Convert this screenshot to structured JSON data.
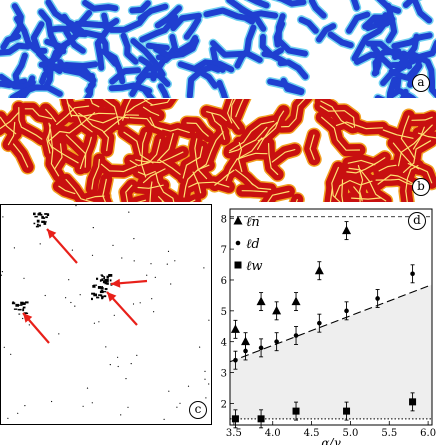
{
  "panels": {
    "a": {
      "label": "a"
    },
    "b": {
      "label": "b"
    },
    "c": {
      "label": "c"
    },
    "d": {
      "label": "d"
    }
  },
  "colors": {
    "a_stripe": "#1f3fd0",
    "a_halo": "#6fd0f0",
    "b_stripe": "#c81010",
    "b_halo": "#f2a020",
    "b_core": "#ffe070",
    "arrow": "#e8201a",
    "band_fill": "#eeeeee"
  },
  "chart_data": {
    "type": "scatter",
    "xlabel": "α/γ",
    "ylabel": "",
    "xlim": [
      3.45,
      6.05
    ],
    "ylim": [
      1.3,
      8.3
    ],
    "x_ticks": [
      "3.5",
      "4.0",
      "4.5",
      "5.0",
      "5.5",
      "6.0"
    ],
    "y_ticks": [
      "2",
      "3",
      "4",
      "5",
      "6",
      "7",
      "8"
    ],
    "series": [
      {
        "name": "ℓn",
        "marker": "triangle",
        "points": [
          [
            3.52,
            4.4
          ],
          [
            3.65,
            4.0
          ],
          [
            3.85,
            5.3
          ],
          [
            4.05,
            5.0
          ],
          [
            4.3,
            5.3
          ],
          [
            4.6,
            6.3
          ],
          [
            4.95,
            7.6
          ]
        ]
      },
      {
        "name": "ℓd",
        "marker": "circle",
        "points": [
          [
            3.52,
            3.4
          ],
          [
            3.65,
            3.7
          ],
          [
            3.85,
            3.8
          ],
          [
            4.05,
            4.0
          ],
          [
            4.3,
            4.2
          ],
          [
            4.6,
            4.6
          ],
          [
            4.95,
            5.0
          ],
          [
            5.35,
            5.4
          ],
          [
            5.8,
            6.2
          ]
        ]
      },
      {
        "name": "ℓw",
        "marker": "square",
        "points": [
          [
            3.52,
            1.5
          ],
          [
            3.85,
            1.5
          ],
          [
            4.3,
            1.75
          ],
          [
            4.95,
            1.75
          ],
          [
            5.8,
            2.05
          ]
        ]
      }
    ],
    "fit_line": {
      "style": "dashed",
      "from": [
        3.45,
        3.35
      ],
      "to": [
        6.05,
        5.85
      ]
    },
    "baseline": {
      "style": "dotted",
      "y": 1.5
    },
    "legend_position": "top-left"
  }
}
